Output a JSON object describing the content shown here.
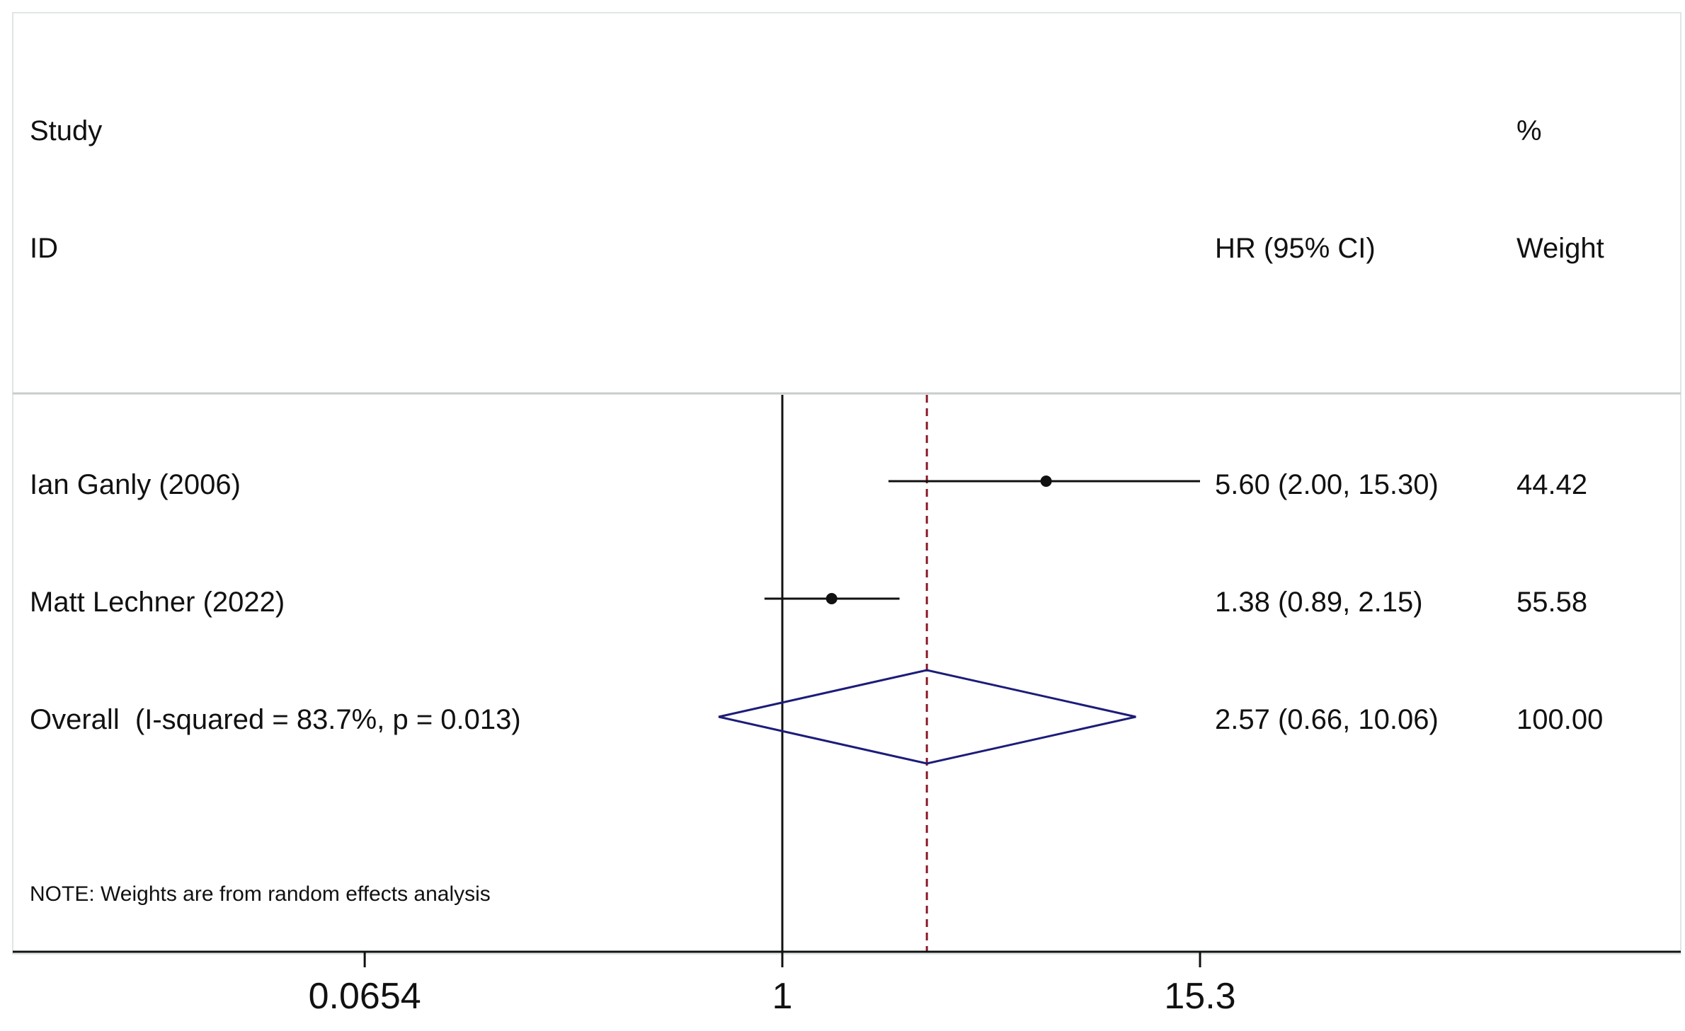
{
  "chart_data": {
    "type": "forest",
    "scale": "log",
    "effect_measure_label": "HR (95% CI)",
    "columns": {
      "study_header_1": "Study",
      "study_header_2": "ID",
      "weight_header_1": "%",
      "weight_header_2": "Weight"
    },
    "studies": [
      {
        "label": "Ian Ganly (2006)",
        "hr": 5.6,
        "lower": 2.0,
        "upper": 15.3,
        "ci_text": "5.60 (2.00, 15.30)",
        "weight": 44.42,
        "weight_text": "44.42"
      },
      {
        "label": "Matt Lechner (2022)",
        "hr": 1.38,
        "lower": 0.89,
        "upper": 2.15,
        "ci_text": "1.38 (0.89, 2.15)",
        "weight": 55.58,
        "weight_text": "55.58"
      }
    ],
    "overall": {
      "label": "Overall  (I-squared = 83.7%, p = 0.013)",
      "hr": 2.57,
      "lower": 0.66,
      "upper": 10.06,
      "ci_text": "2.57 (0.66, 10.06)",
      "weight_text": "100.00"
    },
    "null_line": 1,
    "x_ticks": [
      0.0654,
      1,
      15.3
    ],
    "x_tick_labels": [
      "0.0654",
      "1",
      "15.3"
    ],
    "x_range": [
      0.0143,
      50
    ],
    "note": "NOTE: Weights are from random effects analysis",
    "colors": {
      "overall_diamond": "#1c1c7a",
      "overall_line": "#8b1a2b",
      "axis": "#111111",
      "frame": "#cfd8d8"
    }
  }
}
